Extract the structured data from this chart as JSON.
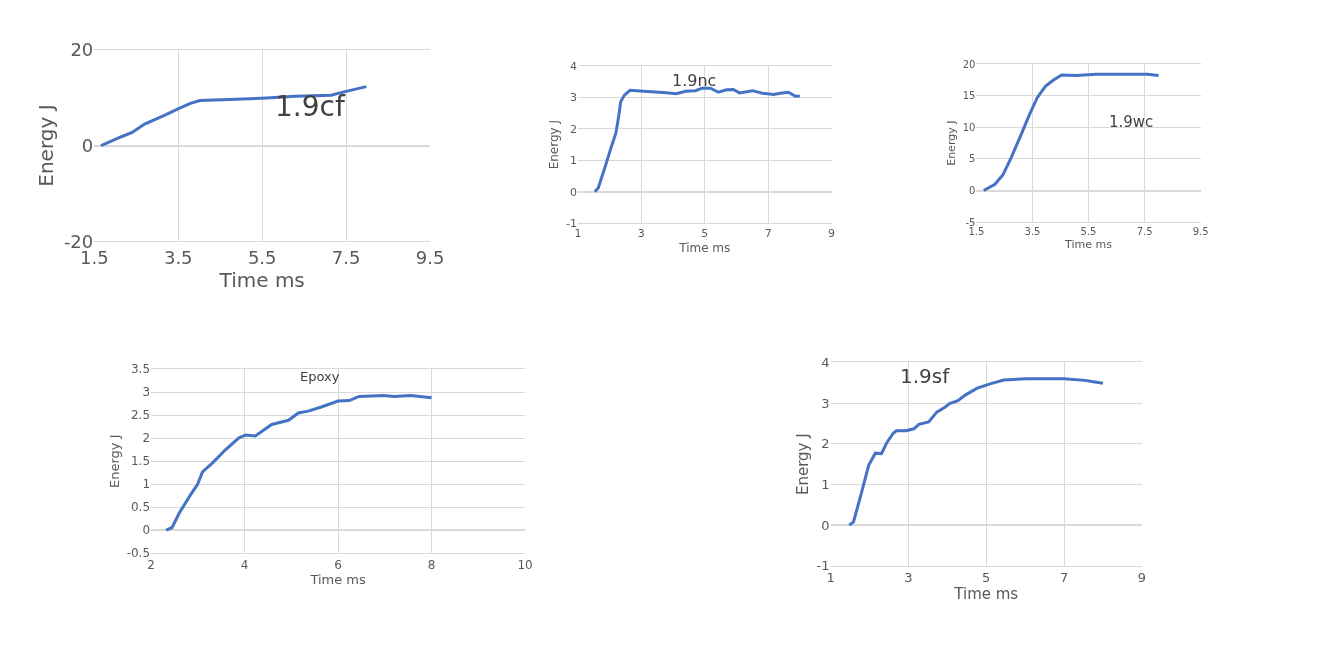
{
  "chart_data": [
    {
      "type": "line",
      "title": "1.9cf",
      "xlabel": "Time ms",
      "ylabel": "Energy J",
      "xlim": [
        1.5,
        9.5
      ],
      "xticks": [
        1.5,
        3.5,
        5.5,
        7.5,
        9.5
      ],
      "ylim": [
        -20,
        20
      ],
      "yticks": [
        -20,
        0,
        20
      ],
      "grid": true,
      "series": [
        {
          "color": "#4472c4",
          "x": [
            1.66,
            2.16,
            2.39,
            2.7,
            3.17,
            3.48,
            3.79,
            4.02,
            4.72,
            5.5,
            6.28,
            7.14,
            7.45,
            7.98
          ],
          "values": [
            0,
            1.9,
            2.7,
            4.5,
            6.3,
            7.6,
            8.8,
            9.4,
            9.6,
            9.9,
            10.3,
            10.5,
            11.2,
            12.3
          ]
        }
      ]
    },
    {
      "type": "line",
      "title": "1.9nc",
      "xlabel": "Time ms",
      "ylabel": "Energy J",
      "xlim": [
        1,
        9
      ],
      "xticks": [
        1,
        3,
        5,
        7,
        9
      ],
      "ylim": [
        -1,
        4
      ],
      "yticks": [
        -1,
        0,
        1,
        2,
        3,
        4
      ],
      "grid": true,
      "series": [
        {
          "color": "#4472c4",
          "x": [
            1.53,
            1.64,
            1.84,
            2.0,
            2.2,
            2.3,
            2.35,
            2.46,
            2.64,
            3.07,
            3.69,
            4.1,
            4.4,
            4.71,
            4.92,
            5.18,
            5.43,
            5.69,
            5.9,
            6.1,
            6.51,
            6.82,
            7.18,
            7.39,
            7.64,
            7.85,
            8.0
          ],
          "values": [
            0,
            0.12,
            0.74,
            1.26,
            1.88,
            2.5,
            2.87,
            3.07,
            3.23,
            3.2,
            3.16,
            3.12,
            3.2,
            3.22,
            3.3,
            3.3,
            3.17,
            3.25,
            3.26,
            3.15,
            3.22,
            3.14,
            3.1,
            3.14,
            3.17,
            3.05,
            3.04
          ]
        }
      ]
    },
    {
      "type": "line",
      "title": "1.9wc",
      "xlabel": "Time ms",
      "ylabel": "Energy J",
      "xlim": [
        1.5,
        9.5
      ],
      "xticks": [
        1.5,
        3.5,
        5.5,
        7.5,
        9.5
      ],
      "ylim": [
        -5,
        20
      ],
      "yticks": [
        -5,
        0,
        5,
        10,
        15,
        20
      ],
      "grid": true,
      "series": [
        {
          "color": "#4472c4",
          "x": [
            1.76,
            2.16,
            2.45,
            2.74,
            3.09,
            3.38,
            3.67,
            3.96,
            4.25,
            4.54,
            5.06,
            5.76,
            6.92,
            7.6,
            8.0
          ],
          "values": [
            0,
            1.0,
            2.5,
            5.2,
            8.8,
            11.9,
            14.7,
            16.5,
            17.5,
            18.3,
            18.2,
            18.4,
            18.4,
            18.4,
            18.2
          ]
        }
      ]
    },
    {
      "type": "line",
      "title": "Epoxy",
      "xlabel": "Time ms",
      "ylabel": "Energy J",
      "xlim": [
        2,
        10
      ],
      "xticks": [
        2,
        4,
        6,
        8,
        10
      ],
      "ylim": [
        -0.5,
        3.5
      ],
      "yticks": [
        -0.5,
        0,
        0.5,
        1,
        1.5,
        2,
        2.5,
        3,
        3.5
      ],
      "grid": true,
      "series": [
        {
          "color": "#4472c4",
          "x": [
            2.32,
            2.45,
            2.6,
            2.85,
            2.99,
            3.1,
            3.31,
            3.59,
            3.88,
            4.02,
            4.23,
            4.58,
            4.94,
            5.15,
            5.36,
            5.64,
            6.0,
            6.24,
            6.45,
            6.98,
            7.2,
            7.55,
            8.0
          ],
          "values": [
            0,
            0.06,
            0.37,
            0.78,
            0.99,
            1.27,
            1.46,
            1.75,
            2.01,
            2.07,
            2.05,
            2.3,
            2.39,
            2.55,
            2.59,
            2.68,
            2.81,
            2.82,
            2.91,
            2.93,
            2.91,
            2.93,
            2.88
          ]
        }
      ]
    },
    {
      "type": "line",
      "title": "1.9sf",
      "xlabel": "Time ms",
      "ylabel": "Energy J",
      "xlim": [
        1,
        9
      ],
      "xticks": [
        1,
        3,
        5,
        7,
        9
      ],
      "ylim": [
        -1,
        4
      ],
      "yticks": [
        -1,
        0,
        1,
        2,
        3,
        4
      ],
      "grid": true,
      "series": [
        {
          "color": "#4472c4",
          "x": [
            1.48,
            1.59,
            1.77,
            1.98,
            2.15,
            2.31,
            2.44,
            2.61,
            2.69,
            2.94,
            3.14,
            3.27,
            3.52,
            3.73,
            3.94,
            4.06,
            4.27,
            4.48,
            4.77,
            5.12,
            5.45,
            6.04,
            6.62,
            7.0,
            7.54,
            7.79,
            8.0
          ],
          "values": [
            0,
            0.08,
            0.71,
            1.47,
            1.77,
            1.76,
            2.02,
            2.26,
            2.32,
            2.32,
            2.37,
            2.48,
            2.54,
            2.78,
            2.9,
            2.99,
            3.06,
            3.21,
            3.37,
            3.48,
            3.57,
            3.6,
            3.6,
            3.6,
            3.56,
            3.52,
            3.49
          ]
        }
      ]
    }
  ]
}
